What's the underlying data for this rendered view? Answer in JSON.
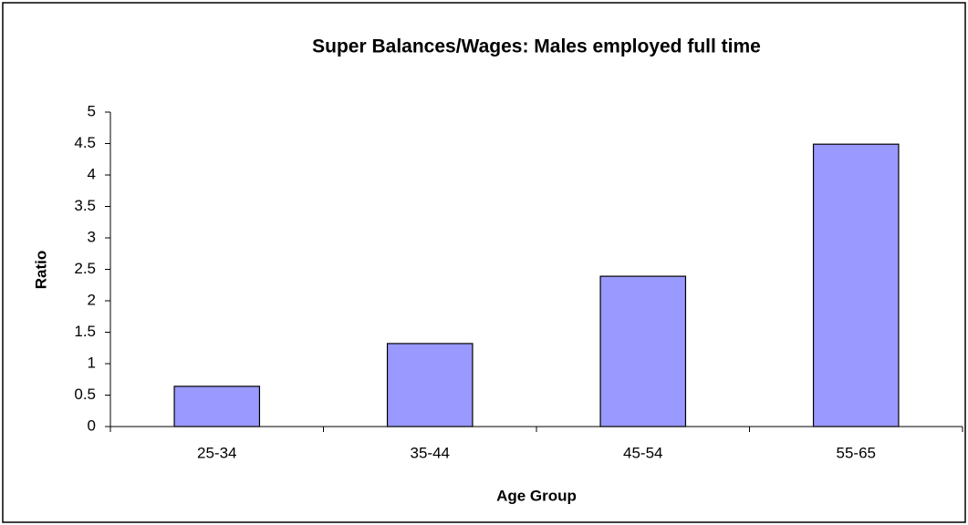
{
  "chart_data": {
    "type": "bar",
    "title": "Super Balances/Wages: Males employed full time",
    "x_label": "Age Group",
    "y_label": "Ratio",
    "categories": [
      "25-34",
      "35-44",
      "45-54",
      "55-65"
    ],
    "values": [
      0.64,
      1.32,
      2.39,
      4.49
    ],
    "color": "#9999ff",
    "ylim": [
      0,
      5
    ],
    "yticks": [
      0,
      0.5,
      1,
      1.5,
      2,
      2.5,
      3,
      3.5,
      4,
      4.5,
      5
    ],
    "grid": false
  }
}
